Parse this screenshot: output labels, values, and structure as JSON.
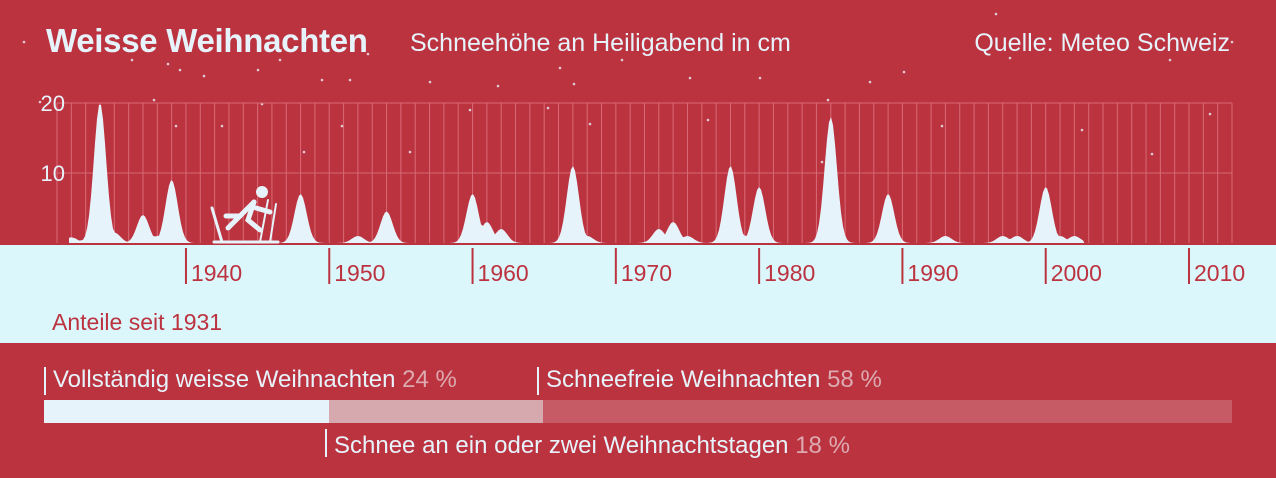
{
  "header": {
    "title": "Weisse Weihnachten",
    "subtitle": "Schneehöhe an Heiligabend in cm",
    "source": "Quelle: Meteo Schweiz"
  },
  "colors": {
    "background": "#bc3340",
    "snow": "#e7f3fa",
    "band": "#dcf7fc",
    "partial": "#d6a9af",
    "none": "#c65b66",
    "text_muted": "#dcaab0"
  },
  "chart_data": [
    {
      "type": "area",
      "title": "Weisse Weihnachten",
      "subtitle": "Schneehöhe an Heiligabend in cm",
      "xlim": [
        1931,
        2013
      ],
      "ylim": [
        0,
        20
      ],
      "grid": true,
      "x_ticks": [
        "1940",
        "1950",
        "1960",
        "1970",
        "1980",
        "1990",
        "2000",
        "2010"
      ],
      "y_ticks": [
        "10",
        "20"
      ],
      "x": [
        1931,
        1932,
        1933,
        1934,
        1935,
        1936,
        1937,
        1938,
        1939,
        1940,
        1941,
        1942,
        1943,
        1944,
        1945,
        1946,
        1947,
        1948,
        1949,
        1950,
        1951,
        1952,
        1953,
        1954,
        1955,
        1956,
        1957,
        1958,
        1959,
        1960,
        1961,
        1962,
        1963,
        1964,
        1965,
        1966,
        1967,
        1968,
        1969,
        1970,
        1971,
        1972,
        1973,
        1974,
        1975,
        1976,
        1977,
        1978,
        1979,
        1980,
        1981,
        1982,
        1983,
        1984,
        1985,
        1986,
        1987,
        1988,
        1989,
        1990,
        1991,
        1992,
        1993,
        1994,
        1995,
        1996,
        1997,
        1998,
        1999,
        2000,
        2001,
        2002,
        2003,
        2004,
        2005,
        2006,
        2007,
        2008,
        2009,
        2010,
        2011,
        2012
      ],
      "values": [
        0.3,
        0.8,
        0.5,
        20,
        1.5,
        0,
        4,
        1,
        9,
        0,
        0,
        0,
        0,
        0,
        0,
        0,
        0,
        7,
        0,
        0,
        0,
        1,
        0,
        4.5,
        0,
        0,
        0,
        0,
        0,
        7,
        3,
        2,
        0,
        0,
        0,
        0,
        11,
        1,
        0,
        0,
        0,
        0,
        2,
        3,
        1,
        0,
        0,
        11,
        1,
        8,
        0,
        0,
        0,
        0,
        18,
        0,
        0,
        0,
        7,
        0,
        0,
        0,
        1,
        0,
        0,
        0,
        1,
        1,
        0,
        8,
        1,
        1,
        0,
        0,
        0,
        0,
        0,
        0,
        0,
        0,
        0,
        0
      ]
    },
    {
      "type": "bar",
      "title": "Anteile seit 1931",
      "categories": [
        "Vollständig weisse Weihnachten",
        "Schnee an ein oder zwei Weihnachtstagen",
        "Schneefreie Weihnachten"
      ],
      "values": [
        24,
        18,
        58
      ],
      "unit": "%"
    }
  ],
  "legend": {
    "section_label": "Anteile seit 1931",
    "full_label": "Vollständig weisse Weihnachten",
    "full_pct": "24 %",
    "none_label": "Schneefreie Weihnachten",
    "none_pct": "58 %",
    "partial_label": "Schnee an ein oder zwei Weihnachtstagen",
    "partial_pct": "18 %"
  },
  "icons": {
    "skier": "skier-icon"
  }
}
